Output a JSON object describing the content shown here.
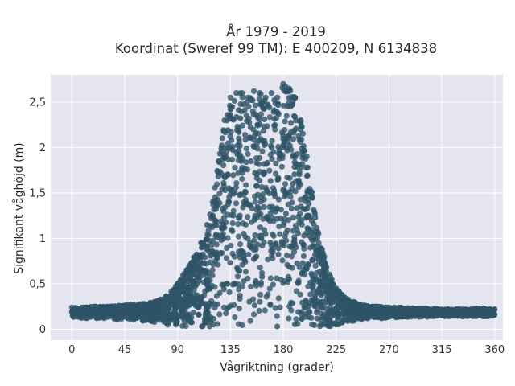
{
  "chart_data": {
    "type": "scatter",
    "title_line1": "År 1979 - 2019",
    "title_line2": "Koordinat (Sweref 99 TM): E 400209, N 6134838",
    "xlabel": "Vågriktning (grader)",
    "ylabel": "Signifikant våghöjd (m)",
    "xlim": [
      -18,
      367
    ],
    "ylim": [
      -0.12,
      2.8
    ],
    "x_ticks": [
      0,
      45,
      90,
      135,
      180,
      225,
      270,
      315,
      360
    ],
    "x_tick_labels": [
      "0",
      "45",
      "90",
      "135",
      "180",
      "225",
      "270",
      "315",
      "360"
    ],
    "y_ticks": [
      0,
      0.5,
      1,
      1.5,
      2,
      2.5
    ],
    "y_tick_labels": [
      "0",
      "0,5",
      "1",
      "1,5",
      "2",
      "2,5"
    ],
    "grid": true,
    "marker_color": "#2e5468",
    "background_color": "#e5e5ef",
    "series": [
      {
        "x": [
          0,
          10,
          20,
          30,
          40,
          50,
          60,
          70,
          80,
          90,
          100,
          110,
          115,
          120,
          125,
          130,
          135,
          140,
          145,
          150,
          155,
          160,
          165,
          170,
          175,
          180,
          185,
          190,
          195,
          200,
          205,
          210,
          215,
          220,
          225,
          230,
          235,
          240,
          250,
          260,
          270,
          280,
          290,
          300,
          310,
          320,
          330,
          340,
          350,
          360
        ],
        "y_upper": [
          0.24,
          0.24,
          0.25,
          0.25,
          0.26,
          0.27,
          0.28,
          0.3,
          0.36,
          0.5,
          0.7,
          0.95,
          1.15,
          1.4,
          1.85,
          2.3,
          2.55,
          2.6,
          2.6,
          2.55,
          2.62,
          2.6,
          2.55,
          2.6,
          2.55,
          2.7,
          2.65,
          2.55,
          2.3,
          1.9,
          1.45,
          1.05,
          0.8,
          0.58,
          0.45,
          0.38,
          0.33,
          0.3,
          0.26,
          0.25,
          0.24,
          0.24,
          0.23,
          0.23,
          0.22,
          0.22,
          0.22,
          0.22,
          0.23,
          0.22
        ],
        "y_lower": [
          0.13,
          0.12,
          0.12,
          0.12,
          0.11,
          0.1,
          0.09,
          0.07,
          0.05,
          0.03,
          0.02,
          0.01,
          0.01,
          0.01,
          0.01,
          0.01,
          0.01,
          0.01,
          0.01,
          0.01,
          0.01,
          0.01,
          0.01,
          0.01,
          0.01,
          0.01,
          0.01,
          0.01,
          0.01,
          0.01,
          0.01,
          0.02,
          0.02,
          0.03,
          0.04,
          0.06,
          0.08,
          0.09,
          0.11,
          0.12,
          0.12,
          0.13,
          0.13,
          0.13,
          0.14,
          0.14,
          0.14,
          0.14,
          0.14,
          0.14
        ]
      }
    ]
  }
}
